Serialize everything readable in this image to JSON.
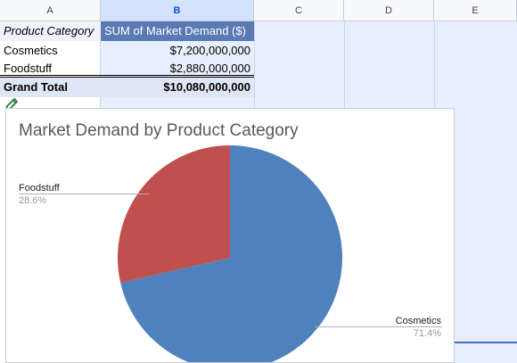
{
  "columns": [
    "A",
    "B",
    "C",
    "D",
    "E"
  ],
  "pivot": {
    "header": [
      "Product Category",
      "SUM of Market Demand ($)"
    ],
    "rows": [
      {
        "label": "Cosmetics",
        "value": "$7,200,000,000"
      },
      {
        "label": "Foodstuff",
        "value": "$2,880,000,000"
      }
    ],
    "total": {
      "label": "Grand Total",
      "value": "$10,080,000,000"
    }
  },
  "chart_data": {
    "type": "pie",
    "title": "Market Demand by Product Category",
    "slices": [
      {
        "name": "Cosmetics",
        "value": 7200000000,
        "percent": "71.4%",
        "color": "#4f81bd"
      },
      {
        "name": "Foodstuff",
        "value": 2880000000,
        "percent": "28.6%",
        "color": "#c0504d"
      }
    ]
  },
  "icons": {
    "edit": "pencil-icon"
  }
}
